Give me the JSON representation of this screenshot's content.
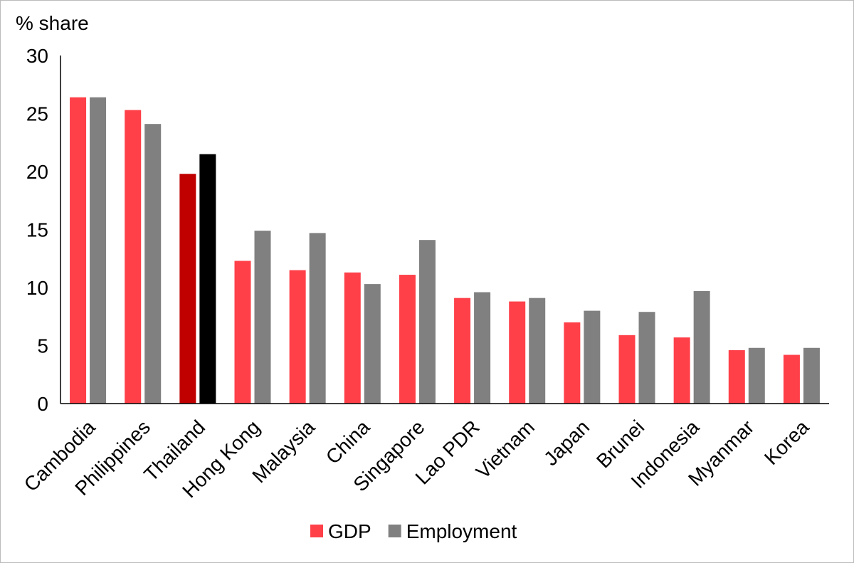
{
  "chart_data": {
    "type": "bar",
    "y_label": "% share",
    "categories": [
      "Cambodia",
      "Philippines",
      "Thailand",
      "Hong Kong",
      "Malaysia",
      "China",
      "Singapore",
      "Lao PDR",
      "Vietnam",
      "Japan",
      "Brunei",
      "Indonesia",
      "Myanmar",
      "Korea"
    ],
    "series": [
      {
        "name": "GDP",
        "color": "#ff4049",
        "highlight_color": "#c00000",
        "values": [
          26.4,
          25.3,
          19.8,
          12.3,
          11.5,
          11.3,
          11.1,
          9.1,
          8.8,
          7.0,
          5.9,
          5.7,
          4.6,
          4.2
        ]
      },
      {
        "name": "Employment",
        "color": "#808080",
        "highlight_color": "#000000",
        "values": [
          26.4,
          24.1,
          21.5,
          14.9,
          14.7,
          10.3,
          14.1,
          9.6,
          9.1,
          8.0,
          7.9,
          9.7,
          4.8,
          4.8
        ]
      }
    ],
    "highlight_category": "Thailand",
    "ylim": [
      0,
      30
    ],
    "yticks": [
      0,
      5,
      10,
      15,
      20,
      25,
      30
    ],
    "grid": false,
    "legend": "bottom"
  }
}
